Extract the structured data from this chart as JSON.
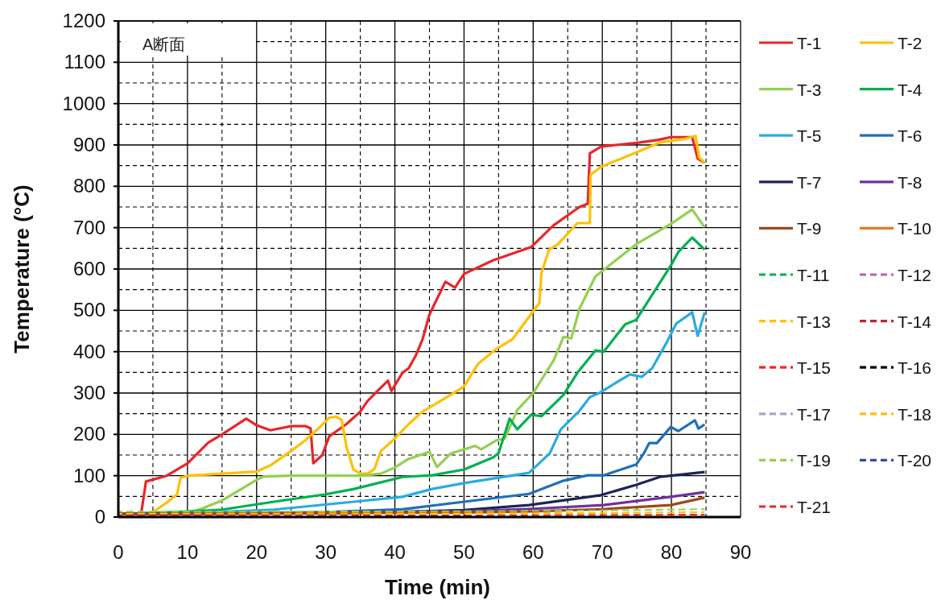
{
  "chart_data": {
    "type": "line",
    "xlabel": "Time (min)",
    "ylabel": "Temperature (°C)",
    "xlim": [
      0,
      90
    ],
    "xticks": [
      0,
      10,
      20,
      30,
      40,
      50,
      60,
      70,
      80,
      90
    ],
    "ylim": [
      0,
      1200
    ],
    "yticks": [
      0,
      100,
      200,
      300,
      400,
      500,
      600,
      700,
      800,
      900,
      1000,
      1100,
      1200
    ],
    "grid": true,
    "legend": "right",
    "marker": "none",
    "annotations": [
      "A断面"
    ],
    "series": [
      {
        "name": "T-1",
        "color": "#e8262a",
        "line_style": "solid",
        "x": [
          0,
          3.3,
          4,
          7,
          10,
          13,
          15,
          18.5,
          20,
          22,
          25,
          27,
          27.8,
          28.2,
          29.5,
          30.5,
          33,
          35,
          36,
          37.5,
          39,
          39.5,
          41.1,
          42,
          43,
          44,
          45,
          47.3,
          48.7,
          50,
          54.2,
          59.7,
          62.9,
          66.7,
          67.9,
          68.2,
          69.8,
          72,
          75,
          78,
          79.9,
          83,
          83.8,
          84.8
        ],
        "values": [
          7,
          8,
          86,
          100,
          130,
          180,
          200,
          238,
          222,
          210,
          220,
          220,
          215,
          130,
          150,
          195,
          225,
          255,
          280,
          305,
          330,
          305,
          349,
          360,
          390,
          430,
          490,
          569,
          555,
          588,
          621,
          653,
          705,
          750,
          758,
          880,
          896,
          900,
          905,
          912,
          919,
          919,
          867,
          857
        ]
      },
      {
        "name": "T-2",
        "color": "#ffc000",
        "line_style": "solid",
        "x": [
          0,
          3.5,
          5,
          7,
          8.5,
          9,
          10,
          20,
          22,
          25,
          27,
          29,
          30.5,
          31.5,
          32.3,
          33,
          34,
          35,
          36,
          37,
          38,
          40,
          42,
          44,
          46,
          48,
          50,
          52,
          54.7,
          57,
          59.7,
          60.9,
          61.2,
          62.3,
          63.6,
          66.4,
          68.2,
          68.3,
          69.8,
          75.2,
          78.3,
          80,
          82,
          83.5,
          84,
          84.8
        ],
        "values": [
          7,
          7,
          12,
          35,
          55,
          95,
          100,
          110,
          125,
          160,
          185,
          215,
          240,
          243,
          235,
          170,
          115,
          105,
          105,
          115,
          160,
          190,
          225,
          255,
          275,
          295,
          316,
          370,
          407,
          430,
          491,
          518,
          590,
          647,
          660,
          711,
          711,
          828,
          847,
          884,
          906,
          910,
          915,
          922,
          870,
          857
        ]
      },
      {
        "name": "T-3",
        "color": "#92d050",
        "line_style": "solid",
        "x": [
          0,
          9,
          10,
          12,
          15,
          18,
          20,
          21,
          25,
          35,
          38,
          40,
          41.9,
          45,
          46.1,
          48.1,
          51.6,
          52.5,
          54.7,
          55.9,
          57.7,
          60,
          63,
          64.4,
          65.5,
          66.7,
          69,
          74.9,
          79.9,
          83,
          84.8
        ],
        "values": [
          7,
          7,
          10,
          20,
          40,
          70,
          90,
          98,
          100,
          100,
          105,
          120,
          140,
          158,
          121,
          154,
          172,
          164,
          186,
          190,
          259,
          300,
          380,
          436,
          432,
          504,
          582,
          660,
          709,
          744,
          701
        ]
      },
      {
        "name": "T-4",
        "color": "#00b050",
        "line_style": "solid",
        "x": [
          0,
          10.8,
          15,
          22.5,
          30,
          34.1,
          41.1,
          45.4,
          50,
          54.2,
          55,
          56.6,
          57.7,
          59.7,
          61.2,
          62.9,
          64.4,
          66.4,
          69,
          70.2,
          73.3,
          74.9,
          79.9,
          81,
          83,
          84.8
        ],
        "values": [
          7,
          14,
          18,
          37,
          55,
          68,
          97,
          101,
          115,
          144,
          155,
          238,
          212,
          247,
          244,
          271,
          296,
          349,
          403,
          400,
          466,
          477,
          608,
          641,
          676,
          647
        ]
      },
      {
        "name": "T-5",
        "color": "#29abe2",
        "line_style": "solid",
        "x": [
          0,
          10,
          22.5,
          34.1,
          41.1,
          45.4,
          50,
          59.4,
          62.4,
          64,
          66.7,
          68.2,
          69.8,
          71.4,
          74,
          75.7,
          77.2,
          79.2,
          80.7,
          83,
          83.8,
          84.8
        ],
        "values": [
          7,
          9,
          18,
          37,
          49,
          68,
          82,
          107,
          154,
          212,
          257,
          290,
          302,
          319,
          345,
          339,
          360,
          419,
          468,
          495,
          438,
          495
        ]
      },
      {
        "name": "T-6",
        "color": "#1f6fb8",
        "line_style": "solid",
        "x": [
          0,
          20,
          30,
          41.1,
          50,
          59.4,
          64.4,
          67.9,
          70.2,
          74.9,
          76,
          76.8,
          77.9,
          79.9,
          81,
          83.4,
          83.9,
          84.8
        ],
        "values": [
          7,
          9,
          12,
          19,
          37,
          56,
          88,
          101,
          101,
          127,
          154,
          179,
          179,
          218,
          208,
          234,
          214,
          224
        ]
      },
      {
        "name": "T-7",
        "color": "#1c2456",
        "line_style": "solid",
        "x": [
          0,
          30,
          40,
          50,
          59.4,
          69.8,
          74.9,
          78.3,
          84.8
        ],
        "values": [
          7,
          9,
          12,
          17,
          29,
          53,
          78,
          97,
          109
        ]
      },
      {
        "name": "T-8",
        "color": "#7030a0",
        "line_style": "solid",
        "x": [
          0,
          50,
          60,
          70.2,
          79.9,
          84.8
        ],
        "values": [
          7,
          14,
          20,
          29,
          49,
          60
        ]
      },
      {
        "name": "T-9",
        "color": "#9c4a1a",
        "line_style": "solid",
        "x": [
          0,
          50,
          60,
          70,
          79.9,
          84.8
        ],
        "values": [
          7,
          11,
          14,
          19,
          29,
          47
        ]
      },
      {
        "name": "T-10",
        "color": "#e87722",
        "line_style": "solid"
      },
      {
        "name": "T-11",
        "color": "#00b050",
        "line_style": "dashed"
      },
      {
        "name": "T-12",
        "color": "#c05fb0",
        "line_style": "dashed"
      },
      {
        "name": "T-13",
        "color": "#ffc000",
        "line_style": "dashed"
      },
      {
        "name": "T-14",
        "color": "#c0262d",
        "line_style": "dashed"
      },
      {
        "name": "T-15",
        "color": "#ff2020",
        "line_style": "dashed"
      },
      {
        "name": "T-16",
        "color": "#000000",
        "line_style": "dashed"
      },
      {
        "name": "T-17",
        "color": "#b0a0d0",
        "line_style": "dashed"
      },
      {
        "name": "T-18",
        "color": "#ffc000",
        "line_style": "dashed",
        "x": [
          0,
          50,
          70,
          84.8
        ],
        "values": [
          8,
          9,
          10,
          12
        ]
      },
      {
        "name": "T-19",
        "color": "#92d050",
        "line_style": "dashed",
        "x": [
          0,
          50,
          70,
          84.8
        ],
        "values": [
          13,
          14,
          16,
          19
        ]
      },
      {
        "name": "T-20",
        "color": "#2e4fa8",
        "line_style": "dashed"
      },
      {
        "name": "T-21",
        "color": "#e8262a",
        "line_style": "dashed",
        "x": [
          0,
          50,
          70,
          84.8
        ],
        "values": [
          3,
          4,
          5,
          6
        ]
      }
    ]
  }
}
